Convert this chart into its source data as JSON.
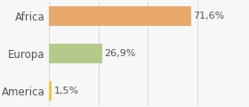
{
  "categories": [
    "America",
    "Europa",
    "Africa"
  ],
  "values": [
    1.5,
    26.9,
    71.6
  ],
  "bar_colors": [
    "#e8c84a",
    "#b5c98a",
    "#e8a96a"
  ],
  "labels": [
    "1,5%",
    "26,9%",
    "71,6%"
  ],
  "background_color": "#f7f7f7",
  "xlim": [
    0,
    100
  ],
  "label_fontsize": 8,
  "tick_fontsize": 8.5,
  "bar_height": 0.52
}
